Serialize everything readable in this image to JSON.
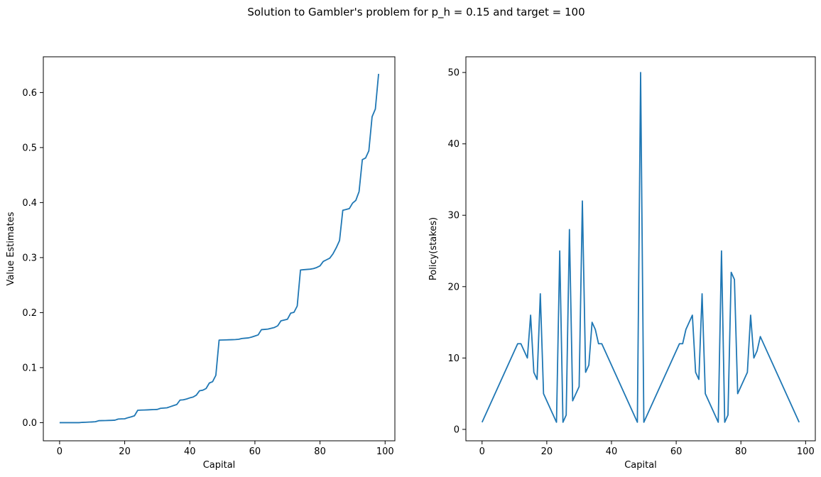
{
  "figure": {
    "title": "Solution to Gambler's problem for p_h = 0.15 and target = 100"
  },
  "chart_data": [
    {
      "type": "line",
      "xlabel": "Capital",
      "ylabel": "Value Estimates",
      "xlim": [
        -5.0,
        103.0
      ],
      "ylim": [
        -0.033,
        0.665
      ],
      "xticks": [
        0,
        20,
        40,
        60,
        80,
        100
      ],
      "yticks": [
        0.0,
        0.1,
        0.2,
        0.3,
        0.4,
        0.5,
        0.6
      ],
      "ytick_labels": [
        "0.0",
        "0.1",
        "0.2",
        "0.3",
        "0.4",
        "0.5",
        "0.6"
      ],
      "grid": false,
      "color": "#1f77b4",
      "series": [
        {
          "x": [
            0,
            1,
            2,
            3,
            4,
            5,
            6,
            7,
            8,
            9,
            10,
            11,
            12,
            13,
            14,
            15,
            16,
            17,
            18,
            19,
            20,
            21,
            22,
            23,
            24,
            25,
            26,
            27,
            28,
            29,
            30,
            31,
            32,
            33,
            34,
            35,
            36,
            37,
            38,
            39,
            40,
            41,
            42,
            43,
            44,
            45,
            46,
            47,
            48,
            49,
            50,
            51,
            52,
            53,
            54,
            55,
            56,
            57,
            58,
            59,
            60,
            61,
            62,
            63,
            64,
            65,
            66,
            67,
            68,
            69,
            70,
            71,
            72,
            73,
            74,
            75,
            76,
            77,
            78,
            79,
            80,
            81,
            82,
            83,
            84,
            85,
            86,
            87,
            88,
            89,
            90,
            91,
            92,
            93,
            94,
            95,
            96,
            97,
            98
          ],
          "y": [
            0.0,
            0.0,
            0.0,
            0.0,
            0.0,
            0.0,
            0.0,
            0.0005,
            0.0007,
            0.001,
            0.0013,
            0.0017,
            0.0035,
            0.0037,
            0.0038,
            0.004,
            0.0042,
            0.0045,
            0.0065,
            0.0068,
            0.007,
            0.009,
            0.0105,
            0.0125,
            0.0225,
            0.0228,
            0.023,
            0.0232,
            0.0235,
            0.0238,
            0.024,
            0.026,
            0.0265,
            0.027,
            0.029,
            0.031,
            0.033,
            0.041,
            0.0415,
            0.043,
            0.045,
            0.0465,
            0.05,
            0.058,
            0.059,
            0.062,
            0.072,
            0.0745,
            0.086,
            0.15,
            0.1502,
            0.1504,
            0.1506,
            0.1508,
            0.151,
            0.1515,
            0.153,
            0.1535,
            0.154,
            0.1555,
            0.1575,
            0.1595,
            0.169,
            0.1695,
            0.17,
            0.1715,
            0.173,
            0.176,
            0.185,
            0.1865,
            0.188,
            0.199,
            0.2005,
            0.212,
            0.2775,
            0.278,
            0.2785,
            0.279,
            0.28,
            0.282,
            0.285,
            0.293,
            0.296,
            0.299,
            0.307,
            0.318,
            0.331,
            0.386,
            0.3875,
            0.389,
            0.399,
            0.404,
            0.42,
            0.478,
            0.481,
            0.494,
            0.556,
            0.57,
            0.634
          ]
        }
      ]
    },
    {
      "type": "line",
      "xlabel": "Capital",
      "ylabel": "Policy(stakes)",
      "xlim": [
        -5.0,
        103.0
      ],
      "ylim": [
        -1.6,
        52.2
      ],
      "xticks": [
        0,
        20,
        40,
        60,
        80,
        100
      ],
      "yticks": [
        0,
        10,
        20,
        30,
        40,
        50
      ],
      "ytick_labels": [
        "0",
        "10",
        "20",
        "30",
        "40",
        "50"
      ],
      "grid": false,
      "color": "#1f77b4",
      "series": [
        {
          "x": [
            0,
            11,
            12,
            14,
            15,
            16,
            17,
            18,
            19,
            23,
            24,
            25,
            26,
            27,
            28,
            30,
            31,
            32,
            33,
            34,
            35,
            36,
            37,
            48,
            49,
            50,
            61,
            62,
            63,
            65,
            66,
            67,
            68,
            69,
            73,
            74,
            75,
            76,
            77,
            78,
            79,
            82,
            83,
            84,
            85,
            86,
            98
          ],
          "y": [
            1,
            12,
            12,
            10,
            16,
            8,
            7,
            19,
            5,
            1,
            25,
            1,
            2,
            28,
            4,
            6,
            32,
            8,
            9,
            15,
            14,
            12,
            12,
            1,
            50,
            1,
            12,
            12,
            14,
            16,
            8,
            7,
            19,
            5,
            1,
            25,
            1,
            2,
            22,
            21,
            5,
            8,
            16,
            10,
            11,
            13,
            1
          ]
        }
      ]
    }
  ]
}
